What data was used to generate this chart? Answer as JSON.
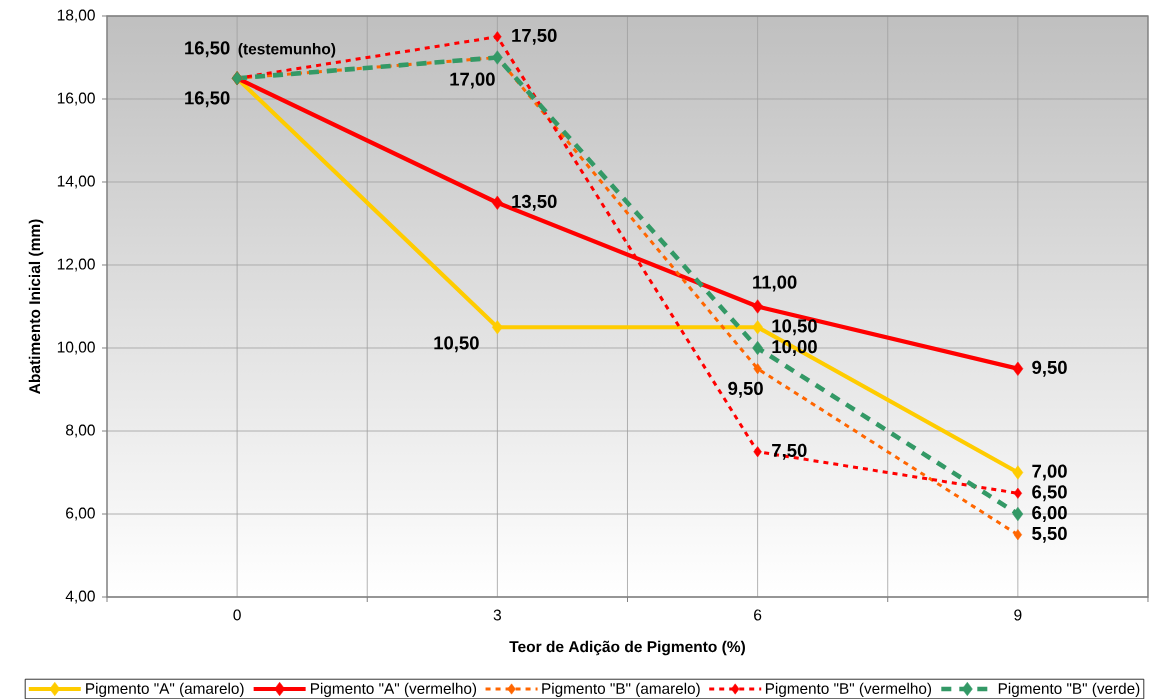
{
  "chart_data": {
    "type": "line",
    "xlabel": "Teor de Adição de Pigmento (%)",
    "ylabel": "Abatimento Inicial (mm)",
    "categories": [
      "0",
      "3",
      "6",
      "9"
    ],
    "ylim": [
      4,
      18
    ],
    "yticks": [
      {
        "value": 4,
        "label": "4,00"
      },
      {
        "value": 6,
        "label": "6,00"
      },
      {
        "value": 8,
        "label": "8,00"
      },
      {
        "value": 10,
        "label": "10,00"
      },
      {
        "value": 12,
        "label": "12,00"
      },
      {
        "value": 14,
        "label": "14,00"
      },
      {
        "value": 16,
        "label": "16,00"
      },
      {
        "value": 18,
        "label": "18,00"
      }
    ],
    "grid": true,
    "legend": "bottom",
    "marker": "diamond",
    "series": [
      {
        "name": "Pigmento \"A\" (amarelo)",
        "color": "#ffcc00",
        "line_style": "solid",
        "values": [
          16.5,
          10.5,
          10.5,
          7.0
        ],
        "value_labels": [
          "16,50",
          "10,50",
          "10,50",
          "7,00"
        ]
      },
      {
        "name": "Pigmento \"A\" (vermelho)",
        "color": "#ff0000",
        "line_style": "solid",
        "values": [
          16.5,
          13.5,
          11.0,
          9.5
        ],
        "value_labels": [
          "16,50",
          "13,50",
          "11,00",
          "9,50"
        ]
      },
      {
        "name": "Pigmento \"B\" (amarelo)",
        "color": "#ff6600",
        "line_style": "dotted",
        "values": [
          16.5,
          17.0,
          9.5,
          5.5
        ],
        "value_labels": [
          null,
          "17,00",
          "9,50",
          "5,50"
        ]
      },
      {
        "name": "Pigmento \"B\" (vermelho)",
        "color": "#ff0000",
        "line_style": "dotted",
        "values": [
          16.5,
          17.5,
          7.5,
          6.5
        ],
        "value_labels": [
          null,
          "17,50",
          "7,50",
          "6,50"
        ]
      },
      {
        "name": "Pigmento \"B\" (verde)",
        "color": "#339966",
        "line_style": "dashed",
        "values": [
          16.5,
          17.0,
          10.0,
          6.0
        ],
        "value_labels": [
          null,
          null,
          "10,00",
          "6,00"
        ]
      }
    ],
    "annotations": [
      {
        "text": "(testemunho)",
        "x": "0",
        "y": 16.5
      }
    ]
  }
}
